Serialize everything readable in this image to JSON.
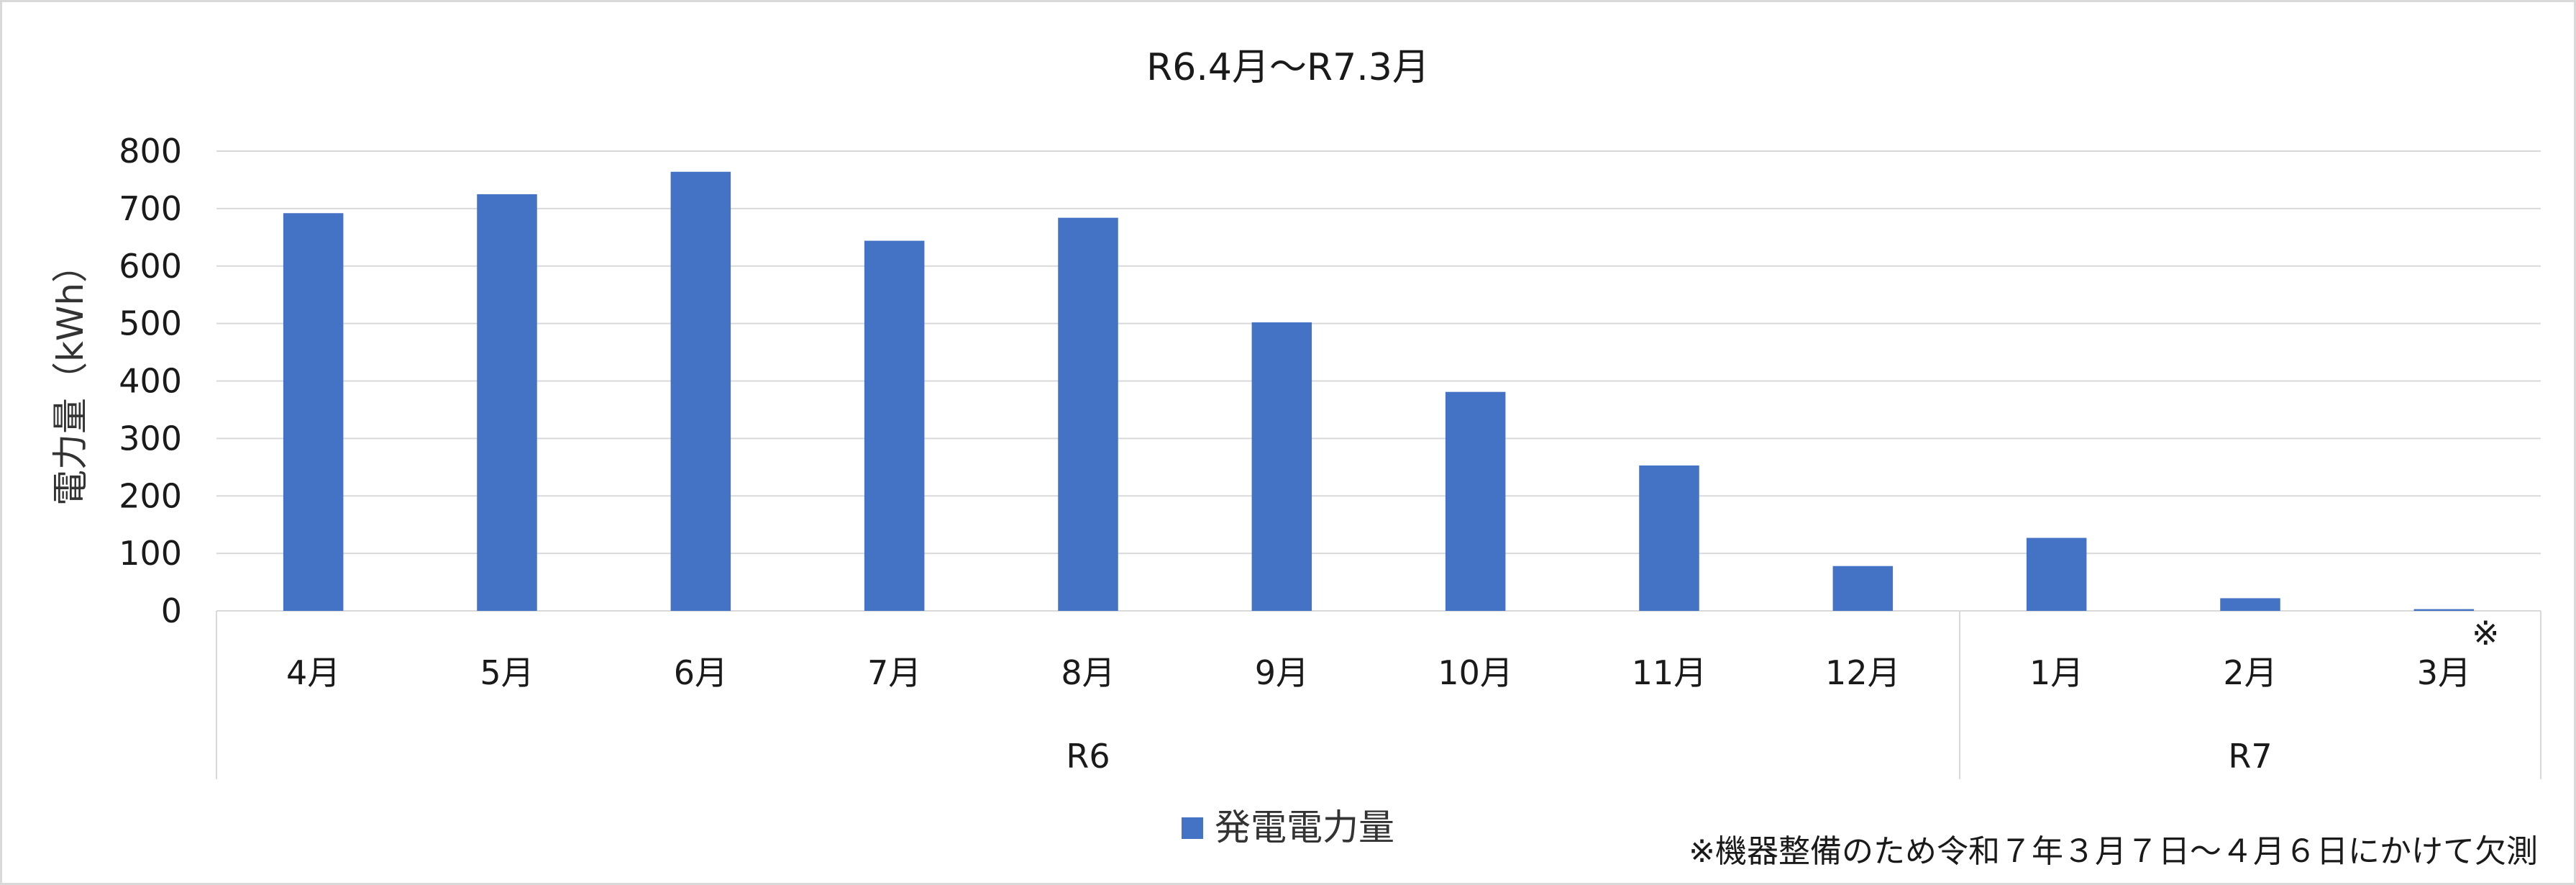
{
  "chart_data": {
    "type": "bar",
    "title": "R6.4月～R7.3月",
    "ylabel": "電力量（kWh）",
    "xlabel": "",
    "ylim": [
      0,
      800
    ],
    "yticks": [
      0,
      100,
      200,
      300,
      400,
      500,
      600,
      700,
      800
    ],
    "grid": true,
    "legend_position": "bottom",
    "categories": [
      "4月",
      "5月",
      "6月",
      "7月",
      "8月",
      "9月",
      "10月",
      "11月",
      "12月",
      "1月",
      "2月",
      "3月"
    ],
    "groups": [
      {
        "label": "R6",
        "count": 9
      },
      {
        "label": "R7",
        "count": 3
      }
    ],
    "series": [
      {
        "name": "発電電力量",
        "color": "#4472C4",
        "values": [
          692,
          725,
          764,
          644,
          684,
          502,
          381,
          253,
          78,
          127,
          22,
          3
        ]
      }
    ],
    "annotation_mark": "※",
    "annotation_category_index": 11,
    "footnote": "※機器整備のため令和７年３月７日～４月６日にかけて欠測"
  }
}
